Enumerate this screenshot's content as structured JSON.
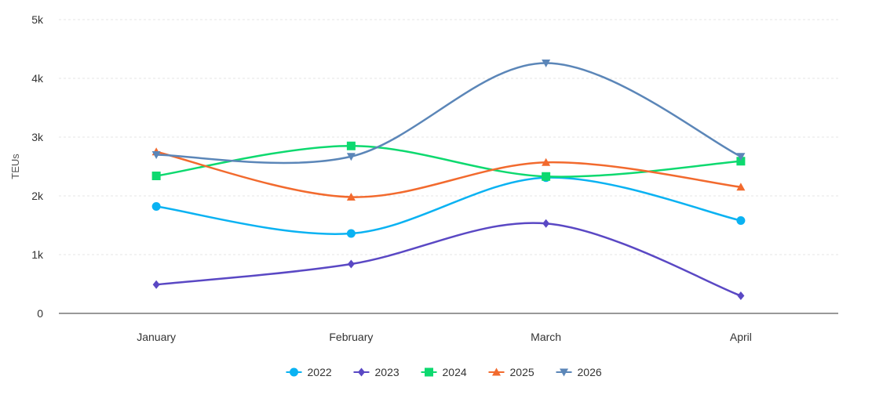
{
  "chart_data": {
    "type": "line",
    "title": "",
    "xlabel": "",
    "ylabel": "TEUs",
    "categories": [
      "January",
      "February",
      "March",
      "April"
    ],
    "ylim": [
      0,
      5000
    ],
    "y_ticks": [
      0,
      1000,
      2000,
      3000,
      4000,
      5000
    ],
    "y_tick_labels": [
      "0",
      "1k",
      "2k",
      "3k",
      "4k",
      "5k"
    ],
    "grid": true,
    "legend_position": "bottom-center",
    "series": [
      {
        "name": "2022",
        "color": "#0ab2f2",
        "marker": "circle",
        "values": [
          1820,
          1360,
          2310,
          1580
        ]
      },
      {
        "name": "2023",
        "color": "#5a48c4",
        "marker": "diamond",
        "values": [
          490,
          840,
          1530,
          300
        ]
      },
      {
        "name": "2024",
        "color": "#0dd96f",
        "marker": "square",
        "values": [
          2340,
          2850,
          2330,
          2590
        ]
      },
      {
        "name": "2025",
        "color": "#f26a2e",
        "marker": "triangle-up",
        "values": [
          2750,
          1980,
          2570,
          2150
        ]
      },
      {
        "name": "2026",
        "color": "#5b86b8",
        "marker": "triangle-down",
        "values": [
          2700,
          2670,
          4260,
          2670
        ]
      }
    ]
  }
}
